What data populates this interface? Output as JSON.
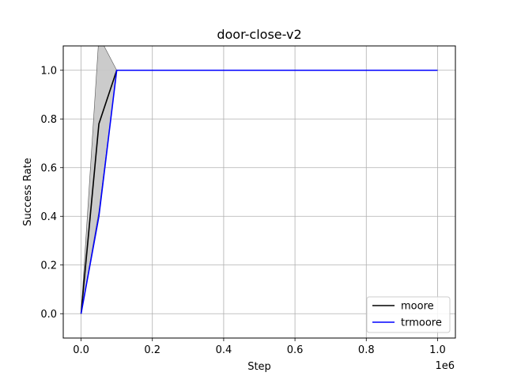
{
  "chart_data": {
    "type": "line",
    "title": "door-close-v2",
    "xlabel": "Step",
    "ylabel": "Success Rate",
    "x_offset_text": "1e6",
    "xlim": [
      -50000,
      1050000
    ],
    "ylim": [
      -0.1,
      1.1
    ],
    "grid": true,
    "legend_position": "lower-right",
    "x_ticks": [
      0,
      200000,
      400000,
      600000,
      800000,
      1000000
    ],
    "x_tick_labels": [
      "0.0",
      "0.2",
      "0.4",
      "0.6",
      "0.8",
      "1.0"
    ],
    "y_ticks": [
      0.0,
      0.2,
      0.4,
      0.6,
      0.8,
      1.0
    ],
    "y_tick_labels": [
      "0.0",
      "0.2",
      "0.4",
      "0.6",
      "0.8",
      "1.0"
    ],
    "x": [
      0,
      50000,
      100000,
      150000,
      200000,
      250000,
      300000,
      350000,
      400000,
      450000,
      500000,
      550000,
      600000,
      650000,
      700000,
      750000,
      800000,
      850000,
      900000,
      950000,
      1000000
    ],
    "series": [
      {
        "name": "moore",
        "color": "#000000",
        "values": [
          0.0,
          0.78,
          1.0,
          1.0,
          1.0,
          1.0,
          1.0,
          1.0,
          1.0,
          1.0,
          1.0,
          1.0,
          1.0,
          1.0,
          1.0,
          1.0,
          1.0,
          1.0,
          1.0,
          1.0,
          1.0
        ],
        "band_lower": [
          0.0,
          0.42,
          1.0,
          1.0,
          1.0,
          1.0,
          1.0,
          1.0,
          1.0,
          1.0,
          1.0,
          1.0,
          1.0,
          1.0,
          1.0,
          1.0,
          1.0,
          1.0,
          1.0,
          1.0,
          1.0
        ],
        "band_upper": [
          0.0,
          1.14,
          1.0,
          1.0,
          1.0,
          1.0,
          1.0,
          1.0,
          1.0,
          1.0,
          1.0,
          1.0,
          1.0,
          1.0,
          1.0,
          1.0,
          1.0,
          1.0,
          1.0,
          1.0,
          1.0
        ],
        "band_color": "#c8c8c8"
      },
      {
        "name": "trmoore",
        "color": "#0000ff",
        "values": [
          0.0,
          0.4,
          1.0,
          1.0,
          1.0,
          1.0,
          1.0,
          1.0,
          1.0,
          1.0,
          1.0,
          1.0,
          1.0,
          1.0,
          1.0,
          1.0,
          1.0,
          1.0,
          1.0,
          1.0,
          1.0
        ]
      }
    ]
  }
}
